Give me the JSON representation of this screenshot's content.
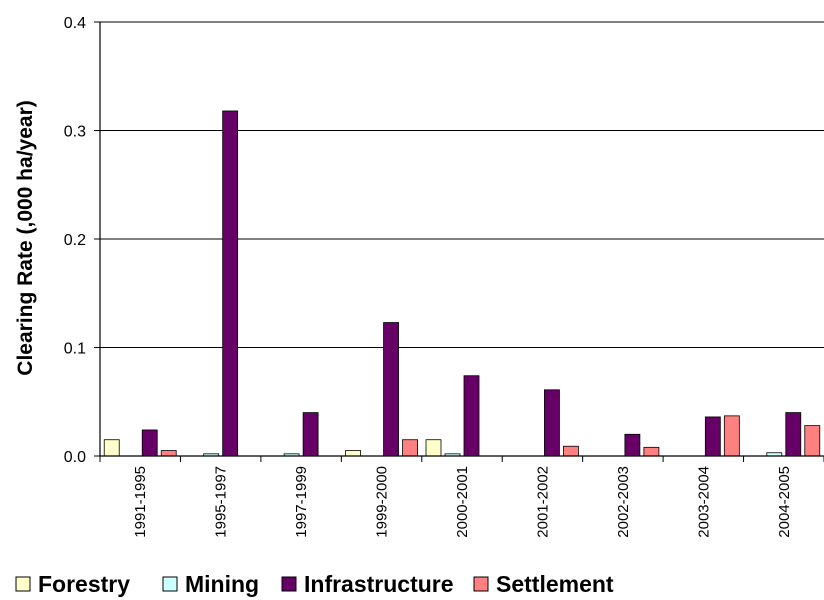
{
  "chart_data": {
    "type": "bar",
    "ylabel": "Clearing Rate (,000 ha/year)",
    "ylim": [
      0,
      0.4
    ],
    "yticks": [
      "0.0",
      "0.1",
      "0.2",
      "0.3",
      "0.4"
    ],
    "ytick_values": [
      0,
      0.1,
      0.2,
      0.3,
      0.4
    ],
    "grid": true,
    "legend_position": "bottom",
    "categories": [
      "1991-1995",
      "1995-1997",
      "1997-1999",
      "1999-2000",
      "2000-2001",
      "2001-2002",
      "2002-2003",
      "2003-2004",
      "2004-2005"
    ],
    "series": [
      {
        "name": "Forestry",
        "color": "#ffffcc",
        "values": [
          0.015,
          0.0,
          0.0,
          0.005,
          0.015,
          0.0,
          0.0,
          0.0,
          0.0
        ]
      },
      {
        "name": "Mining",
        "color": "#ccffff",
        "values": [
          0.0,
          0.002,
          0.002,
          0.0,
          0.002,
          0.0,
          0.0,
          0.0,
          0.003
        ]
      },
      {
        "name": "Infrastructure",
        "color": "#660066",
        "values": [
          0.024,
          0.318,
          0.04,
          0.123,
          0.074,
          0.061,
          0.02,
          0.036,
          0.04
        ]
      },
      {
        "name": "Settlement",
        "color": "#ff8080",
        "values": [
          0.005,
          0.0,
          0.0,
          0.015,
          0.0,
          0.009,
          0.008,
          0.037,
          0.028
        ]
      }
    ]
  }
}
